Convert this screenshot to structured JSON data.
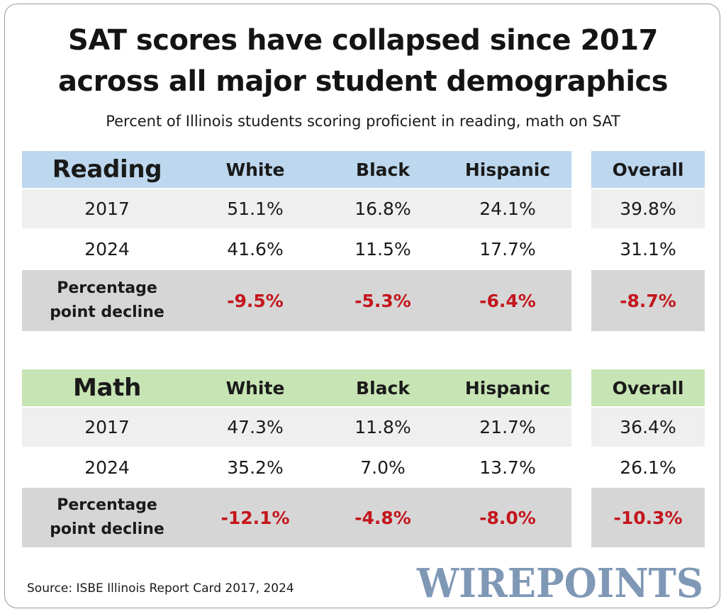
{
  "title_line1": "SAT scores have collapsed since 2017",
  "title_line2": "across all major student demographics",
  "subtitle": "Percent of Illinois students scoring proficient in reading, math on SAT",
  "colors": {
    "reading_header": "#bcd7ee",
    "math_header": "#c7e4b4",
    "light_row": "#efefef",
    "decline_row": "#d6d6d6",
    "decline_text": "#c3161c",
    "logo": "#7f98b6"
  },
  "chart_data": {
    "type": "table",
    "columns": [
      "White",
      "Black",
      "Hispanic",
      "Overall"
    ],
    "tables": [
      {
        "name": "Reading",
        "rows": [
          {
            "label": "2017",
            "values": [
              "51.1%",
              "16.8%",
              "24.1%",
              "39.8%"
            ]
          },
          {
            "label": "2024",
            "values": [
              "41.6%",
              "11.5%",
              "17.7%",
              "31.1%"
            ]
          },
          {
            "label_line1": "Percentage",
            "label_line2": "point decline",
            "values": [
              "-9.5%",
              "-5.3%",
              "-6.4%",
              "-8.7%"
            ]
          }
        ]
      },
      {
        "name": "Math",
        "rows": [
          {
            "label": "2017",
            "values": [
              "47.3%",
              "11.8%",
              "21.7%",
              "36.4%"
            ]
          },
          {
            "label": "2024",
            "values": [
              "35.2%",
              "7.0%",
              "13.7%",
              "26.1%"
            ]
          },
          {
            "label_line1": "Percentage",
            "label_line2": "point decline",
            "values": [
              "-12.1%",
              "-4.8%",
              "-8.0%",
              "-10.3%"
            ]
          }
        ]
      }
    ]
  },
  "source": "Source: ISBE Illinois Report Card 2017, 2024",
  "logo_text": "WIREPOINTS"
}
